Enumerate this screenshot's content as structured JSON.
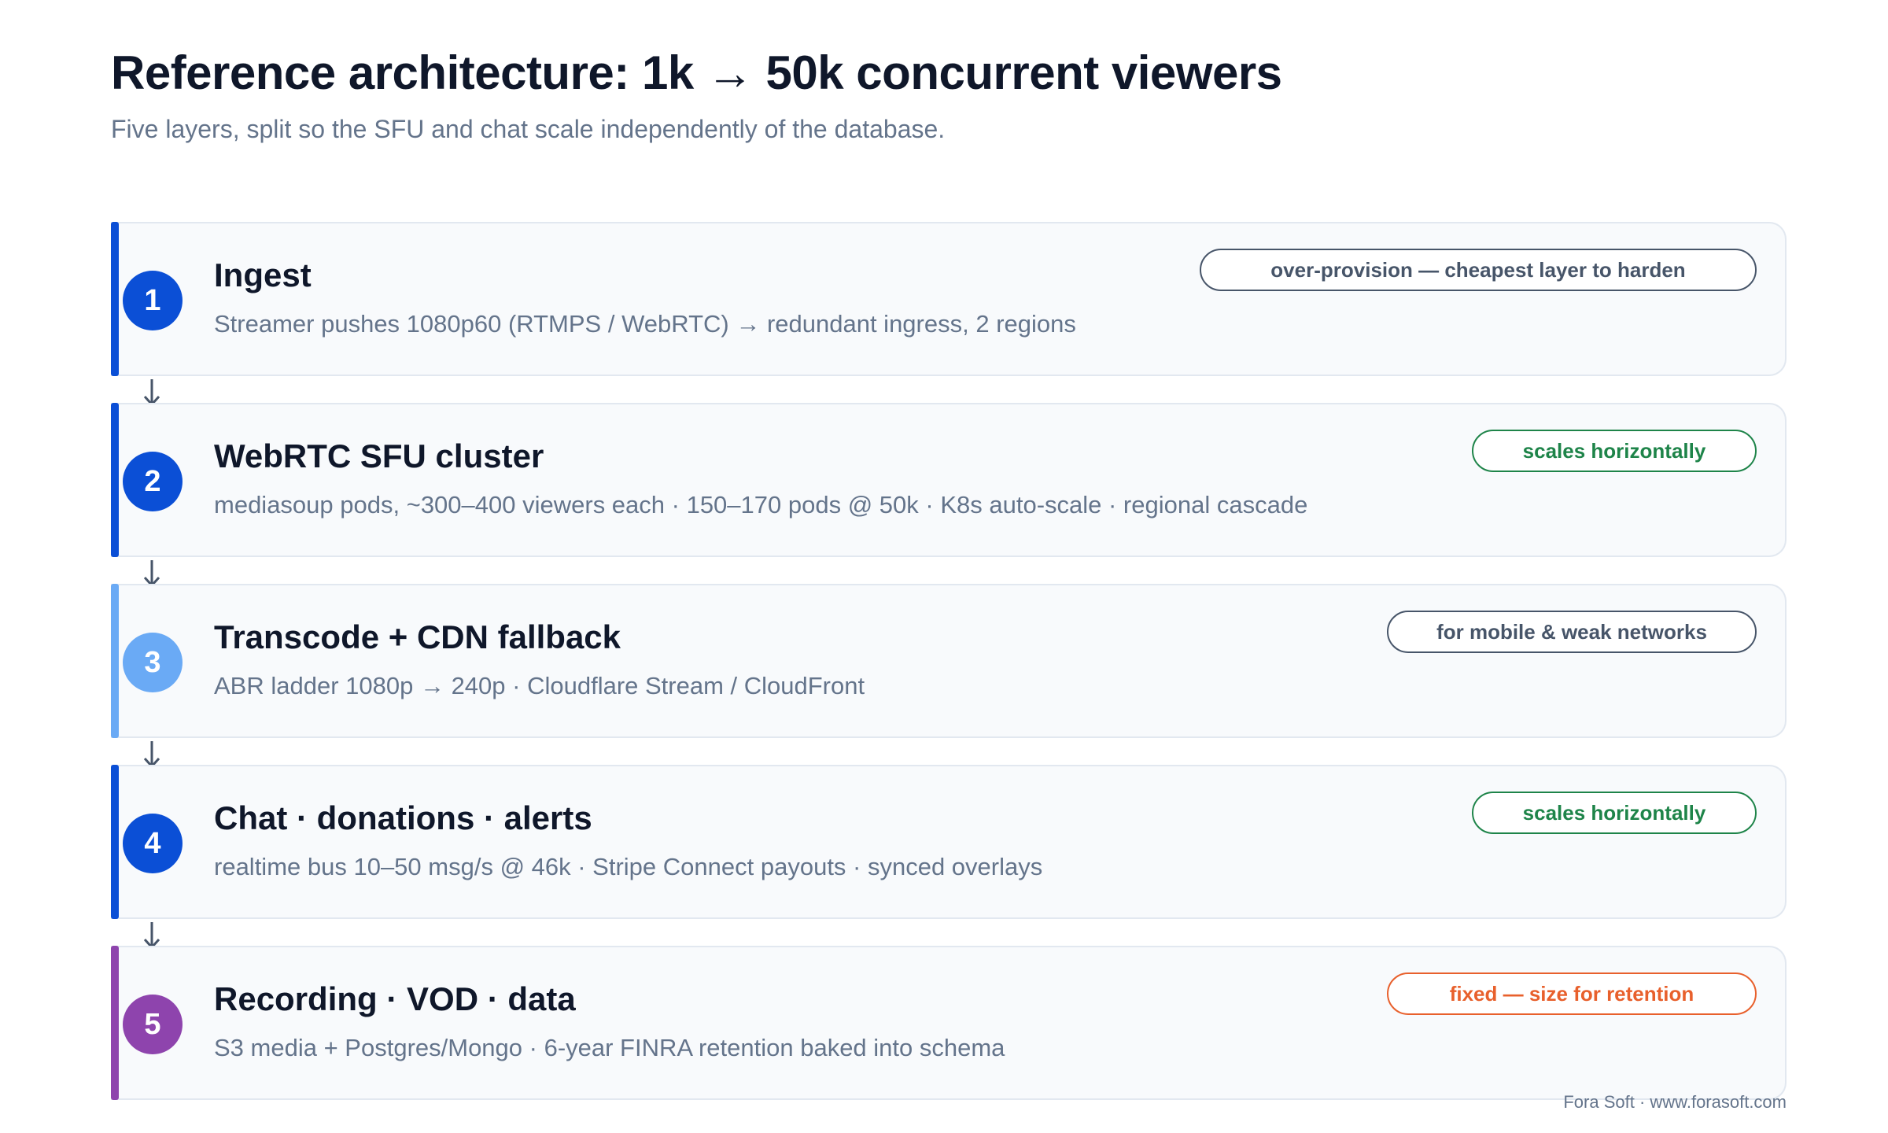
{
  "header": {
    "title": "Reference architecture: 1k → 50k concurrent viewers",
    "subtitle": "Five layers, split so the SFU and chat scale independently of the database."
  },
  "layers": [
    {
      "number": "1",
      "name": "Ingest",
      "description": "Streamer pushes 1080p60 (RTMPS / WebRTC) → redundant ingress, 2 regions",
      "tag": "over-provision — cheapest layer to harden",
      "accent_color": "#0b4fd6",
      "tag_color": "#475569"
    },
    {
      "number": "2",
      "name": "WebRTC SFU cluster",
      "description": "mediasoup pods, ~300–400 viewers each · 150–170 pods @ 50k · K8s auto-scale · regional cascade",
      "tag": "scales horizontally",
      "accent_color": "#0b4fd6",
      "tag_color": "#1e8449"
    },
    {
      "number": "3",
      "name": "Transcode + CDN fallback",
      "description": "ABR ladder 1080p → 240p · Cloudflare Stream / CloudFront",
      "tag": "for mobile & weak networks",
      "accent_color": "#6aaaf5",
      "tag_color": "#475569"
    },
    {
      "number": "4",
      "name": "Chat · donations · alerts",
      "description": "realtime bus 10–50 msg/s @ 46k · Stripe Connect payouts · synced overlays",
      "tag": "scales horizontally",
      "accent_color": "#0b4fd6",
      "tag_color": "#1e8449"
    },
    {
      "number": "5",
      "name": "Recording · VOD · data",
      "description": "S3 media + Postgres/Mongo · 6-year FINRA retention baked into schema",
      "tag": "fixed — size for retention",
      "accent_color": "#8e44ad",
      "tag_color": "#e8602c"
    }
  ],
  "footer": {
    "credit": "Fora Soft · www.forasoft.com"
  }
}
